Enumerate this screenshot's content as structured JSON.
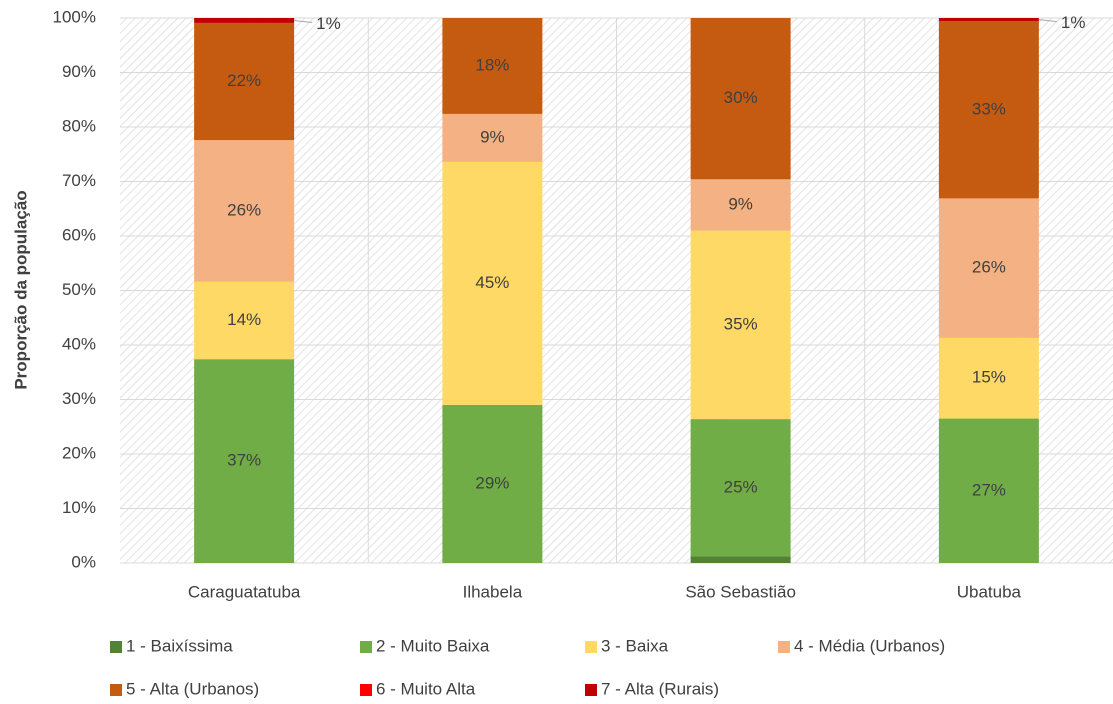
{
  "chart_data": {
    "type": "stacked_bar",
    "y_label": "Proporção da população",
    "categories": [
      "Caraguatatuba",
      "Ilhabela",
      "São Sebastião",
      "Ubatuba"
    ],
    "series": [
      {
        "name": "1 - Baixíssima",
        "color": "#548235",
        "values": [
          0,
          0,
          1.2,
          0
        ]
      },
      {
        "name": "2 - Muito Baixa",
        "color": "#70ad47",
        "values": [
          37.4,
          29,
          25.2,
          26.5
        ],
        "value_labels": [
          "37%",
          "29%",
          "25%",
          "27%"
        ]
      },
      {
        "name": "3 - Baixa",
        "color": "#ffd966",
        "values": [
          14.2,
          44.6,
          34.6,
          14.8
        ],
        "value_labels": [
          "14%",
          "45%",
          "35%",
          "15%"
        ]
      },
      {
        "name": "4 - Média (Urbanos)",
        "color": "#f4b183",
        "values": [
          26,
          8.8,
          9.4,
          25.6
        ],
        "value_labels": [
          "26%",
          "9%",
          "9%",
          "26%"
        ]
      },
      {
        "name": "5 - Alta (Urbanos)",
        "color": "#c55a11",
        "values": [
          21.5,
          17.6,
          29.6,
          32.5
        ],
        "value_labels": [
          "22%",
          "18%",
          "30%",
          "33%"
        ]
      },
      {
        "name": "6 - Muito Alta",
        "color": "#ff0000",
        "values": [
          0,
          0,
          0,
          0
        ]
      },
      {
        "name": "7 - Alta (Rurais)",
        "color": "#c00000",
        "values": [
          0.9,
          0,
          0,
          0.6
        ],
        "value_labels": [
          "1%",
          null,
          null,
          "1%"
        ]
      }
    ],
    "ylim": [
      0,
      100
    ],
    "yticks": [
      {
        "value": 0,
        "label": "0%"
      },
      {
        "value": 10,
        "label": "10%"
      },
      {
        "value": 20,
        "label": "20%"
      },
      {
        "value": 30,
        "label": "30%"
      },
      {
        "value": 40,
        "label": "40%"
      },
      {
        "value": 50,
        "label": "50%"
      },
      {
        "value": 60,
        "label": "60%"
      },
      {
        "value": 70,
        "label": "70%"
      },
      {
        "value": 80,
        "label": "80%"
      },
      {
        "value": 90,
        "label": "90%"
      },
      {
        "value": 100,
        "label": "100%"
      }
    ],
    "grid": true
  }
}
